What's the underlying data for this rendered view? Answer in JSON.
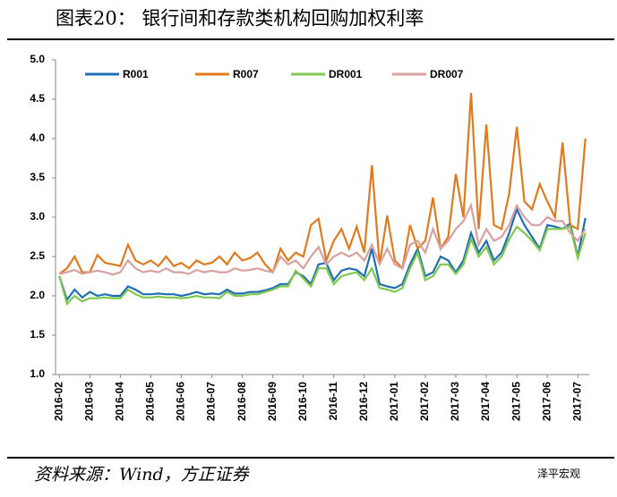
{
  "chart_data": {
    "type": "line",
    "title": "图表20：  银行间和存款类机构回购加权利率",
    "source": "资料来源：Wind，方正证券",
    "watermark": "泽平宏观",
    "categories": [
      "2016-02",
      null,
      null,
      null,
      "2016-03",
      null,
      null,
      null,
      "2016-04",
      null,
      null,
      null,
      "2016-05",
      null,
      null,
      null,
      "2016-06",
      null,
      null,
      null,
      "2016-07",
      null,
      null,
      null,
      "2016-08",
      null,
      null,
      null,
      "2016-09",
      null,
      null,
      null,
      "2016-10",
      null,
      null,
      null,
      "2016-11",
      null,
      null,
      null,
      "2016-12",
      null,
      null,
      null,
      "2017-01",
      null,
      null,
      null,
      "2017-02",
      null,
      null,
      null,
      "2017-03",
      null,
      null,
      null,
      "2017-04",
      null,
      null,
      null,
      "2017-05",
      null,
      null,
      null,
      "2017-06",
      null,
      null,
      null,
      "2017-07",
      null
    ],
    "series": [
      {
        "name": "R001",
        "color": "#1f6fb5",
        "values": [
          2.25,
          1.95,
          2.08,
          1.98,
          2.05,
          2.0,
          2.02,
          2.0,
          2.0,
          2.12,
          2.08,
          2.02,
          2.02,
          2.03,
          2.02,
          2.02,
          2.0,
          2.02,
          2.05,
          2.02,
          2.03,
          2.02,
          2.08,
          2.03,
          2.03,
          2.05,
          2.05,
          2.07,
          2.1,
          2.15,
          2.15,
          2.3,
          2.25,
          2.15,
          2.4,
          2.42,
          2.2,
          2.32,
          2.35,
          2.33,
          2.25,
          2.6,
          2.15,
          2.12,
          2.1,
          2.15,
          2.4,
          2.6,
          2.25,
          2.3,
          2.5,
          2.45,
          2.3,
          2.45,
          2.8,
          2.55,
          2.7,
          2.45,
          2.55,
          2.8,
          3.1,
          2.9,
          2.75,
          2.6,
          2.9,
          2.88,
          2.85,
          2.92,
          2.5,
          2.99
        ]
      },
      {
        "name": "R007",
        "color": "#e07a1f",
        "values": [
          2.28,
          2.35,
          2.5,
          2.3,
          2.3,
          2.52,
          2.42,
          2.4,
          2.38,
          2.65,
          2.45,
          2.4,
          2.45,
          2.38,
          2.5,
          2.38,
          2.42,
          2.35,
          2.45,
          2.4,
          2.42,
          2.5,
          2.4,
          2.55,
          2.45,
          2.48,
          2.55,
          2.4,
          2.3,
          2.6,
          2.45,
          2.55,
          2.5,
          2.9,
          2.98,
          2.45,
          2.7,
          2.85,
          2.6,
          2.88,
          2.55,
          3.66,
          2.4,
          3.02,
          2.45,
          2.35,
          2.9,
          2.6,
          2.7,
          3.25,
          2.6,
          2.75,
          3.55,
          3.0,
          4.58,
          2.85,
          4.18,
          2.9,
          2.85,
          3.3,
          4.15,
          3.2,
          3.1,
          3.42,
          3.2,
          3.0,
          3.95,
          2.9,
          2.85,
          4.0
        ]
      },
      {
        "name": "DR001",
        "color": "#7fc94f",
        "values": [
          2.25,
          1.9,
          2.0,
          1.93,
          1.97,
          1.97,
          1.98,
          1.97,
          1.97,
          2.08,
          2.02,
          1.98,
          1.98,
          1.99,
          1.98,
          1.98,
          1.97,
          1.98,
          2.0,
          1.98,
          1.98,
          1.97,
          2.05,
          2.0,
          2.0,
          2.02,
          2.02,
          2.05,
          2.08,
          2.12,
          2.12,
          2.32,
          2.22,
          2.12,
          2.35,
          2.35,
          2.15,
          2.25,
          2.28,
          2.3,
          2.2,
          2.35,
          2.1,
          2.08,
          2.05,
          2.1,
          2.35,
          2.55,
          2.2,
          2.25,
          2.4,
          2.4,
          2.28,
          2.4,
          2.72,
          2.5,
          2.62,
          2.4,
          2.5,
          2.72,
          2.88,
          2.8,
          2.7,
          2.58,
          2.85,
          2.85,
          2.85,
          2.88,
          2.48,
          2.8
        ]
      },
      {
        "name": "DR007",
        "color": "#d9a0a0",
        "values": [
          2.28,
          2.3,
          2.33,
          2.28,
          2.3,
          2.32,
          2.3,
          2.27,
          2.3,
          2.45,
          2.35,
          2.3,
          2.32,
          2.3,
          2.35,
          2.3,
          2.3,
          2.28,
          2.33,
          2.3,
          2.32,
          2.3,
          2.3,
          2.35,
          2.32,
          2.33,
          2.35,
          2.32,
          2.3,
          2.5,
          2.4,
          2.45,
          2.35,
          2.5,
          2.62,
          2.4,
          2.5,
          2.55,
          2.5,
          2.55,
          2.45,
          2.65,
          2.4,
          2.6,
          2.4,
          2.35,
          2.65,
          2.7,
          2.55,
          2.85,
          2.6,
          2.7,
          2.85,
          2.95,
          3.15,
          2.65,
          2.85,
          2.7,
          2.75,
          2.9,
          3.15,
          3.0,
          2.9,
          2.9,
          3.0,
          2.95,
          2.95,
          2.8,
          2.7,
          2.85
        ]
      }
    ],
    "ylim": [
      1,
      5
    ],
    "yticks": [
      {
        "value": 1,
        "label": "1.0"
      },
      {
        "value": 1.5,
        "label": "1.5"
      },
      {
        "value": 2,
        "label": "2.0"
      },
      {
        "value": 2.5,
        "label": "2.5"
      },
      {
        "value": 3,
        "label": "3.0"
      },
      {
        "value": 3.5,
        "label": "3.5"
      },
      {
        "value": 4,
        "label": "4.0"
      },
      {
        "value": 4.5,
        "label": "4.5"
      },
      {
        "value": 5,
        "label": "5.0"
      }
    ],
    "grid": false
  }
}
